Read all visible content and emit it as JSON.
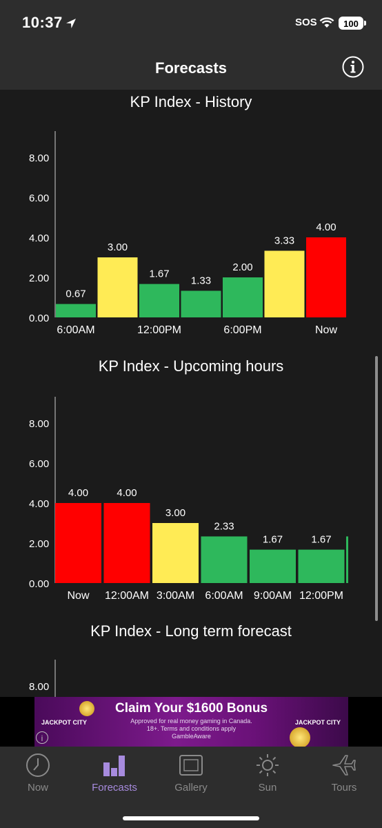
{
  "status": {
    "time": "10:37",
    "sos": "SOS",
    "battery": "100"
  },
  "nav": {
    "title": "Forecasts",
    "info_icon": "info-circle-icon"
  },
  "charts": [
    {
      "id": "history",
      "title": "KP Index - History",
      "y_ticks": [
        "0.00",
        "2.00",
        "4.00",
        "6.00",
        "8.00"
      ],
      "x_labels": [
        "6:00AM",
        "12:00PM",
        "6:00PM",
        "Now"
      ]
    },
    {
      "id": "upcoming",
      "title": "KP Index - Upcoming hours",
      "y_ticks": [
        "0.00",
        "2.00",
        "4.00",
        "6.00",
        "8.00"
      ],
      "x_labels": [
        "Now",
        "12:00AM",
        "3:00AM",
        "6:00AM",
        "9:00AM",
        "12:00PM"
      ]
    },
    {
      "id": "longterm",
      "title": "KP Index - Long term forecast",
      "y_ticks": [
        "8.00"
      ]
    }
  ],
  "chart_data": [
    {
      "type": "bar",
      "title": "KP Index - History",
      "values": [
        0.67,
        3.0,
        1.67,
        1.33,
        2.0,
        3.33,
        4.0
      ],
      "labels": [
        "0.67",
        "3.00",
        "1.67",
        "1.33",
        "2.00",
        "3.33",
        "4.00"
      ],
      "bar_colors": [
        "#2eb85c",
        "#ffeb55",
        "#2eb85c",
        "#2eb85c",
        "#2eb85c",
        "#ffeb55",
        "#ff0000"
      ],
      "x_tick_labels": [
        "6:00AM",
        "12:00PM",
        "6:00PM",
        "Now"
      ],
      "y_ticks": [
        0,
        2,
        4,
        6,
        8
      ],
      "ylim": [
        0,
        8
      ]
    },
    {
      "type": "bar",
      "title": "KP Index - Upcoming hours",
      "categories": [
        "Now",
        "12:00AM",
        "3:00AM",
        "6:00AM",
        "9:00AM",
        "12:00PM"
      ],
      "values": [
        4.0,
        4.0,
        3.0,
        2.33,
        1.67,
        1.67
      ],
      "labels": [
        "4.00",
        "4.00",
        "3.00",
        "2.33",
        "1.67",
        "1.67"
      ],
      "bar_colors": [
        "#ff0000",
        "#ff0000",
        "#ffeb55",
        "#2eb85c",
        "#2eb85c",
        "#2eb85c"
      ],
      "y_ticks": [
        0,
        2,
        4,
        6,
        8
      ],
      "ylim": [
        0,
        8
      ]
    },
    {
      "type": "bar",
      "title": "KP Index - Long term forecast",
      "values": [],
      "y_ticks": [
        8
      ]
    }
  ],
  "ad": {
    "headline": "Claim Your $1600 Bonus",
    "sub_line1": "Approved for real money gaming in Canada.",
    "sub_line2": "18+. Terms and conditions apply",
    "sub_line3": "GambleAware",
    "brand": "JACKPOT CITY"
  },
  "tabs": [
    {
      "label": "Now",
      "icon": "clock-icon",
      "active": false
    },
    {
      "label": "Forecasts",
      "icon": "bar-chart-icon",
      "active": true
    },
    {
      "label": "Gallery",
      "icon": "gallery-icon",
      "active": false
    },
    {
      "label": "Sun",
      "icon": "sun-icon",
      "active": false
    },
    {
      "label": "Tours",
      "icon": "airplane-icon",
      "active": false
    }
  ],
  "colors": {
    "green": "#2eb85c",
    "yellow": "#ffeb55",
    "red": "#ff0000",
    "accent": "#a78bde"
  }
}
